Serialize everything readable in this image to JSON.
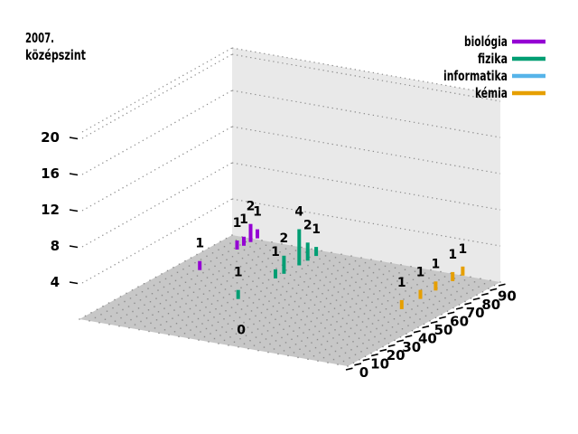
{
  "title": {
    "line1": "2007.",
    "line2": "középszint"
  },
  "legend": [
    {
      "label": "biológia",
      "color": "#9400d3"
    },
    {
      "label": "fizika",
      "color": "#009e73"
    },
    {
      "label": "informatika",
      "color": "#56b4e9"
    },
    {
      "label": "kémia",
      "color": "#e69f00"
    }
  ],
  "chart_data": {
    "type": "bar",
    "projection": "3d-impulse",
    "title": "2007. középszint",
    "xlabel": "",
    "ylabel": "",
    "x_ticks": [
      0,
      10,
      20,
      30,
      40,
      50,
      60,
      70,
      80,
      90
    ],
    "z_ticks": [
      4,
      8,
      12,
      16,
      20
    ],
    "x_range": [
      0,
      90
    ],
    "z_range": [
      0,
      20
    ],
    "grid": "dotted",
    "legend_position": "top-right",
    "series": [
      {
        "name": "biológia",
        "color": "#9400d3",
        "depth_row": 3,
        "points": [
          {
            "x": 57,
            "value": 1
          },
          {
            "x": 79,
            "value": 1
          },
          {
            "x": 83,
            "value": 1
          },
          {
            "x": 87,
            "value": 2
          },
          {
            "x": 91,
            "value": 1
          }
        ]
      },
      {
        "name": "fizika",
        "color": "#009e73",
        "depth_row": 2,
        "points": [
          {
            "x": 39,
            "value": 1
          },
          {
            "x": 61,
            "value": 1
          },
          {
            "x": 66,
            "value": 2
          },
          {
            "x": 75,
            "value": 4
          },
          {
            "x": 80,
            "value": 2
          },
          {
            "x": 85,
            "value": 1
          }
        ]
      },
      {
        "name": "informatika",
        "color": "#56b4e9",
        "depth_row": 1,
        "points": [
          {
            "x": 0,
            "value": 0
          }
        ]
      },
      {
        "name": "kémia",
        "color": "#e69f00",
        "depth_row": 0,
        "points": [
          {
            "x": 54,
            "value": 1
          },
          {
            "x": 65,
            "value": 1
          },
          {
            "x": 74,
            "value": 1
          },
          {
            "x": 84,
            "value": 1
          },
          {
            "x": 90,
            "value": 1
          }
        ]
      }
    ]
  },
  "colors": {
    "floor": "#c7c7c7",
    "wall": "#e9e9e9",
    "grid_dots": "#8c8c8c",
    "text": "#000000"
  }
}
